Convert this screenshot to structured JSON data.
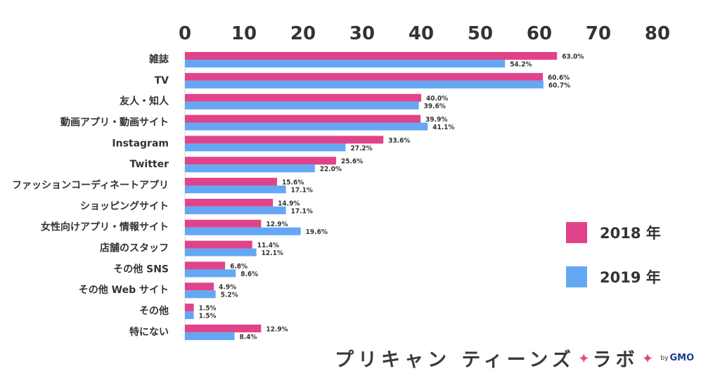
{
  "chart_data": {
    "type": "bar",
    "orientation": "horizontal",
    "categories": [
      "雑誌",
      "TV",
      "友人・知人",
      "動画アプリ・動画サイト",
      "Instagram",
      "Twitter",
      "ファッションコーディネートアプリ",
      "ショッピングサイト",
      "女性向けアプリ・情報サイト",
      "店舗のスタッフ",
      "その他 SNS",
      "その他 Web サイト",
      "その他",
      "特にない"
    ],
    "series": [
      {
        "name": "2018 年",
        "color": "#e0438a",
        "values": [
          63.0,
          60.6,
          40.0,
          39.9,
          33.6,
          25.6,
          15.6,
          14.9,
          12.9,
          11.4,
          6.8,
          4.9,
          1.5,
          12.9
        ],
        "labels": [
          "63.0%",
          "60.6%",
          "40.0%",
          "39.9%",
          "33.6%",
          "25.6%",
          "15.6%",
          "14.9%",
          "12.9%",
          "11.4%",
          "6.8%",
          "4.9%",
          "1.5%",
          "12.9%"
        ]
      },
      {
        "name": "2019 年",
        "color": "#64a8f5",
        "values": [
          54.2,
          60.7,
          39.6,
          41.1,
          27.2,
          22.0,
          17.1,
          17.1,
          19.6,
          12.1,
          8.6,
          5.2,
          1.5,
          8.4
        ],
        "labels": [
          "54.2%",
          "60.7%",
          "39.6%",
          "41.1%",
          "27.2%",
          "22.0%",
          "17.1%",
          "17.1%",
          "19.6%",
          "12.1%",
          "8.6%",
          "5.2%",
          "1.5%",
          "8.4%"
        ]
      }
    ],
    "xlim": [
      0,
      80
    ],
    "xticks": [
      "0",
      "10",
      "20",
      "30",
      "40",
      "50",
      "60",
      "70",
      "80"
    ],
    "xtick_position": "top",
    "grid": false,
    "legend_position": "right"
  },
  "logo": {
    "text": "プリキャン ティーンズ",
    "suffix": "ラボ",
    "by": "by",
    "brand": "GMO"
  }
}
